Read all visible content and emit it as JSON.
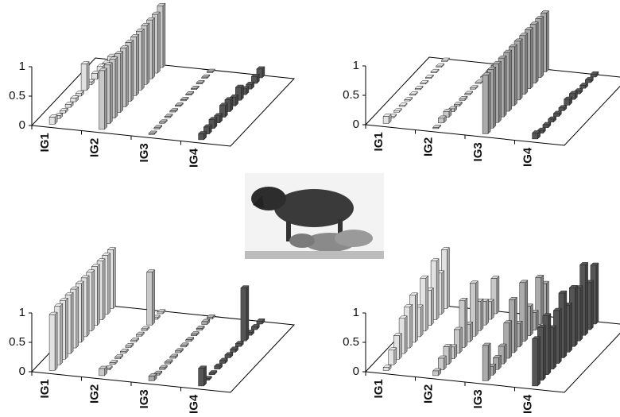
{
  "chart_data": [
    {
      "type": "bar3d",
      "categories": [
        "IG1",
        "IG2",
        "IG3",
        "IG4"
      ],
      "ylim": [
        0,
        1
      ],
      "yticks": [
        0,
        0.5,
        1
      ],
      "colors": [
        "#e2e2e2",
        "#c9c9c9",
        "#ababab",
        "#555555"
      ],
      "values": [
        [
          0.12,
          0.05,
          0.04,
          0.05,
          0.06,
          0.05,
          0.45,
          0.05,
          0.1,
          0.12,
          0.08,
          0.1
        ],
        [
          1.0,
          1.0,
          1.0,
          1.0,
          1.0,
          1.0,
          1.0,
          1.0,
          1.0,
          1.0,
          1.0,
          1.05
        ],
        [
          0.02,
          0.02,
          0.02,
          0.02,
          0.02,
          0.02,
          0.02,
          0.02,
          0.02,
          0.02,
          0.02,
          0.02
        ],
        [
          0.1,
          0.12,
          0.15,
          0.12,
          0.2,
          0.2,
          0.15,
          0.22,
          0.1,
          0.08,
          0.12,
          0.15
        ]
      ]
    },
    {
      "type": "bar3d",
      "categories": [
        "IG1",
        "IG2",
        "IG3",
        "IG4"
      ],
      "ylim": [
        0,
        1
      ],
      "yticks": [
        0,
        0.5,
        1
      ],
      "colors": [
        "#e2e2e2",
        "#c9c9c9",
        "#ababab",
        "#555555"
      ],
      "values": [
        [
          0.12,
          0.02,
          0.02,
          0.02,
          0.02,
          0.02,
          0.02,
          0.02,
          0.02,
          0.02,
          0.02,
          0.02
        ],
        [
          0.02,
          0.08,
          0.1,
          0.05,
          0.03,
          0.03,
          0.02,
          0.02,
          0.02,
          0.02,
          0.02,
          0.02
        ],
        [
          1.0,
          1.0,
          1.0,
          1.0,
          1.0,
          1.0,
          1.0,
          1.0,
          1.0,
          1.0,
          1.0,
          1.0
        ],
        [
          0.1,
          0.05,
          0.05,
          0.05,
          0.05,
          0.05,
          0.1,
          0.1,
          0.05,
          0.05,
          0.05,
          0.05
        ]
      ]
    },
    {
      "type": "bar3d",
      "categories": [
        "IG1",
        "IG2",
        "IG3",
        "IG4"
      ],
      "ylim": [
        0,
        1
      ],
      "yticks": [
        0,
        0.5,
        1
      ],
      "colors": [
        "#e2e2e2",
        "#c9c9c9",
        "#ababab",
        "#555555"
      ],
      "values": [
        [
          0.95,
          1.0,
          1.0,
          1.0,
          1.0,
          1.0,
          1.0,
          1.0,
          1.0,
          1.0,
          1.0,
          1.0
        ],
        [
          0.12,
          0.03,
          0.03,
          0.03,
          0.03,
          0.03,
          0.03,
          0.03,
          0.03,
          0.9,
          0.03,
          0.03
        ],
        [
          0.08,
          0.03,
          0.03,
          0.03,
          0.03,
          0.03,
          0.03,
          0.03,
          0.03,
          0.03,
          0.05,
          0.03
        ],
        [
          0.3,
          0.03,
          0.03,
          0.05,
          0.05,
          0.05,
          0.05,
          0.05,
          0.9,
          0.05,
          0.05,
          0.05
        ]
      ]
    },
    {
      "type": "bar3d",
      "categories": [
        "IG1",
        "IG2",
        "IG3",
        "IG4"
      ],
      "ylim": [
        0,
        1
      ],
      "yticks": [
        0,
        0.5,
        1
      ],
      "colors": [
        "#e2e2e2",
        "#c9c9c9",
        "#ababab",
        "#555555"
      ],
      "values": [
        [
          0.05,
          0.25,
          0.4,
          0.6,
          0.7,
          0.8,
          0.5,
          0.9,
          0.6,
          1.0,
          0.7,
          1.0
        ],
        [
          0.08,
          0.2,
          0.3,
          0.2,
          0.4,
          0.8,
          0.3,
          0.9,
          0.5,
          0.4,
          0.3,
          0.6
        ],
        [
          0.6,
          0.15,
          0.2,
          0.3,
          0.6,
          0.9,
          0.4,
          1.0,
          0.5,
          0.3,
          0.8,
          0.6
        ],
        [
          0.8,
          0.9,
          1.0,
          0.7,
          0.9,
          1.1,
          0.8,
          1.0,
          0.9,
          1.2,
          0.8,
          1.0
        ]
      ]
    }
  ]
}
